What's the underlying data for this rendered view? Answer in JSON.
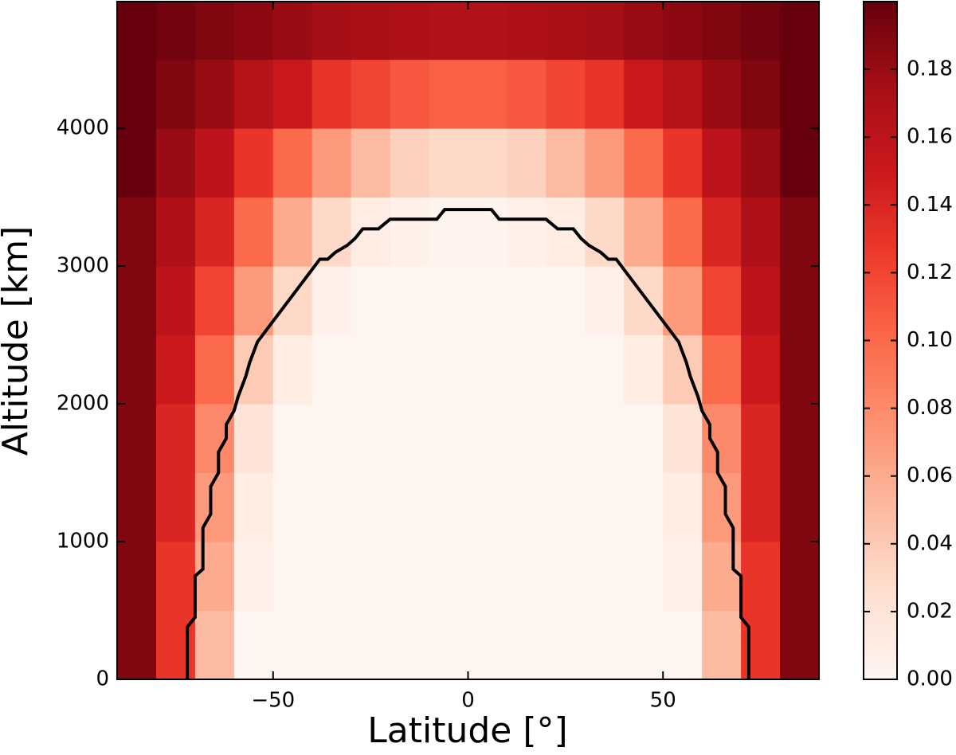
{
  "chart_data": {
    "type": "heatmap",
    "xlabel": "Latitude [°]",
    "ylabel": "Altitude [km]",
    "x": [
      -85,
      -75,
      -65,
      -55,
      -45,
      -35,
      -25,
      -15,
      -5,
      5,
      15,
      25,
      35,
      45,
      55,
      65,
      75,
      85
    ],
    "y": [
      250,
      750,
      1250,
      1750,
      2250,
      2750,
      3250,
      3750,
      4250,
      4750
    ],
    "z": [
      [
        0.19,
        0.13,
        0.05,
        0,
        0,
        0,
        0,
        0,
        0,
        0,
        0,
        0,
        0,
        0,
        0,
        0.05,
        0.13,
        0.19
      ],
      [
        0.19,
        0.13,
        0.06,
        0.005,
        0,
        0,
        0,
        0,
        0,
        0,
        0,
        0,
        0,
        0,
        0.005,
        0.06,
        0.13,
        0.19
      ],
      [
        0.19,
        0.14,
        0.07,
        0.01,
        0,
        0,
        0,
        0,
        0,
        0,
        0,
        0,
        0,
        0,
        0.01,
        0.07,
        0.14,
        0.19
      ],
      [
        0.19,
        0.14,
        0.08,
        0.02,
        0,
        0,
        0,
        0,
        0,
        0,
        0,
        0,
        0,
        0,
        0.02,
        0.08,
        0.14,
        0.19
      ],
      [
        0.19,
        0.15,
        0.1,
        0.04,
        0.01,
        0,
        0,
        0,
        0,
        0,
        0,
        0,
        0,
        0.01,
        0.04,
        0.1,
        0.15,
        0.19
      ],
      [
        0.19,
        0.16,
        0.12,
        0.07,
        0.03,
        0.005,
        0,
        0,
        0,
        0,
        0,
        0,
        0.005,
        0.03,
        0.07,
        0.12,
        0.16,
        0.19
      ],
      [
        0.19,
        0.17,
        0.14,
        0.1,
        0.06,
        0.03,
        0.01,
        0.005,
        0.002,
        0.002,
        0.005,
        0.01,
        0.03,
        0.06,
        0.1,
        0.14,
        0.17,
        0.19
      ],
      [
        0.2,
        0.18,
        0.16,
        0.13,
        0.1,
        0.07,
        0.05,
        0.035,
        0.03,
        0.03,
        0.035,
        0.05,
        0.07,
        0.1,
        0.13,
        0.16,
        0.18,
        0.2
      ],
      [
        0.2,
        0.19,
        0.18,
        0.165,
        0.15,
        0.13,
        0.12,
        0.11,
        0.105,
        0.105,
        0.11,
        0.12,
        0.13,
        0.15,
        0.165,
        0.18,
        0.19,
        0.2
      ],
      [
        0.2,
        0.195,
        0.19,
        0.185,
        0.18,
        0.175,
        0.172,
        0.17,
        0.168,
        0.168,
        0.17,
        0.172,
        0.175,
        0.18,
        0.185,
        0.19,
        0.195,
        0.2
      ]
    ],
    "contour": {
      "color": "#000000",
      "x": [
        -72,
        -72,
        -70,
        -70,
        -68,
        -68,
        -66,
        -66,
        -64,
        -64,
        -62,
        -62,
        -60,
        -59,
        -57,
        -56,
        -54,
        -38,
        -36,
        -34,
        -31,
        -29,
        -27,
        -23,
        -20,
        -8,
        -6,
        6,
        8,
        20,
        23,
        27,
        29,
        31,
        34,
        36,
        38,
        54,
        56,
        57,
        59,
        60,
        62,
        62,
        64,
        64,
        66,
        66,
        68,
        68,
        70,
        70,
        72,
        72
      ],
      "y": [
        0,
        380,
        450,
        750,
        800,
        1100,
        1200,
        1400,
        1500,
        1650,
        1750,
        1850,
        1950,
        2050,
        2200,
        2300,
        2450,
        3050,
        3050,
        3100,
        3150,
        3200,
        3270,
        3270,
        3340,
        3340,
        3410,
        3410,
        3340,
        3340,
        3270,
        3270,
        3200,
        3150,
        3100,
        3050,
        3050,
        2450,
        2300,
        2200,
        2050,
        1950,
        1850,
        1750,
        1650,
        1500,
        1400,
        1200,
        1100,
        800,
        750,
        450,
        380,
        0
      ]
    },
    "xlim": [
      -90,
      90
    ],
    "ylim": [
      0,
      4920
    ],
    "xticks": [
      {
        "value": -50,
        "label": "−50"
      },
      0,
      50
    ],
    "yticks": [
      0,
      1000,
      2000,
      3000,
      4000
    ],
    "colormap": "Reds",
    "clim": [
      0,
      0.2
    ],
    "cticks": [
      {
        "value": 0,
        "label": "0.00"
      },
      0.02,
      0.04,
      0.06,
      0.08,
      {
        "value": 0.1,
        "label": "0.10"
      },
      0.12,
      0.14,
      0.16,
      0.18
    ]
  }
}
